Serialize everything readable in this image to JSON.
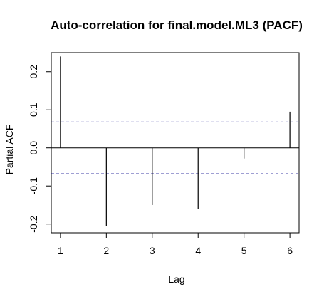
{
  "chart_data": {
    "type": "bar",
    "title": "Auto-correlation for final.model.ML3 (PACF)",
    "xlabel": "Lag",
    "ylabel": "Partial ACF",
    "x": [
      1,
      2,
      3,
      4,
      5,
      6
    ],
    "values": [
      0.24,
      -0.205,
      -0.15,
      -0.16,
      -0.028,
      0.095
    ],
    "xlim": [
      0.8,
      6.2
    ],
    "ylim": [
      -0.223,
      0.25
    ],
    "xticks": [
      1,
      2,
      3,
      4,
      5,
      6
    ],
    "yticks": [
      -0.2,
      -0.1,
      0.0,
      0.1,
      0.2
    ],
    "ytick_labels": [
      "-0.2",
      "-0.1",
      "0.0",
      "0.1",
      "0.2"
    ],
    "confidence_bound": 0.068,
    "grid": false,
    "colors": {
      "bars": "#000000",
      "confidence_lines": "#00008b",
      "zero_line": "#000000",
      "frame": "#000000"
    }
  }
}
